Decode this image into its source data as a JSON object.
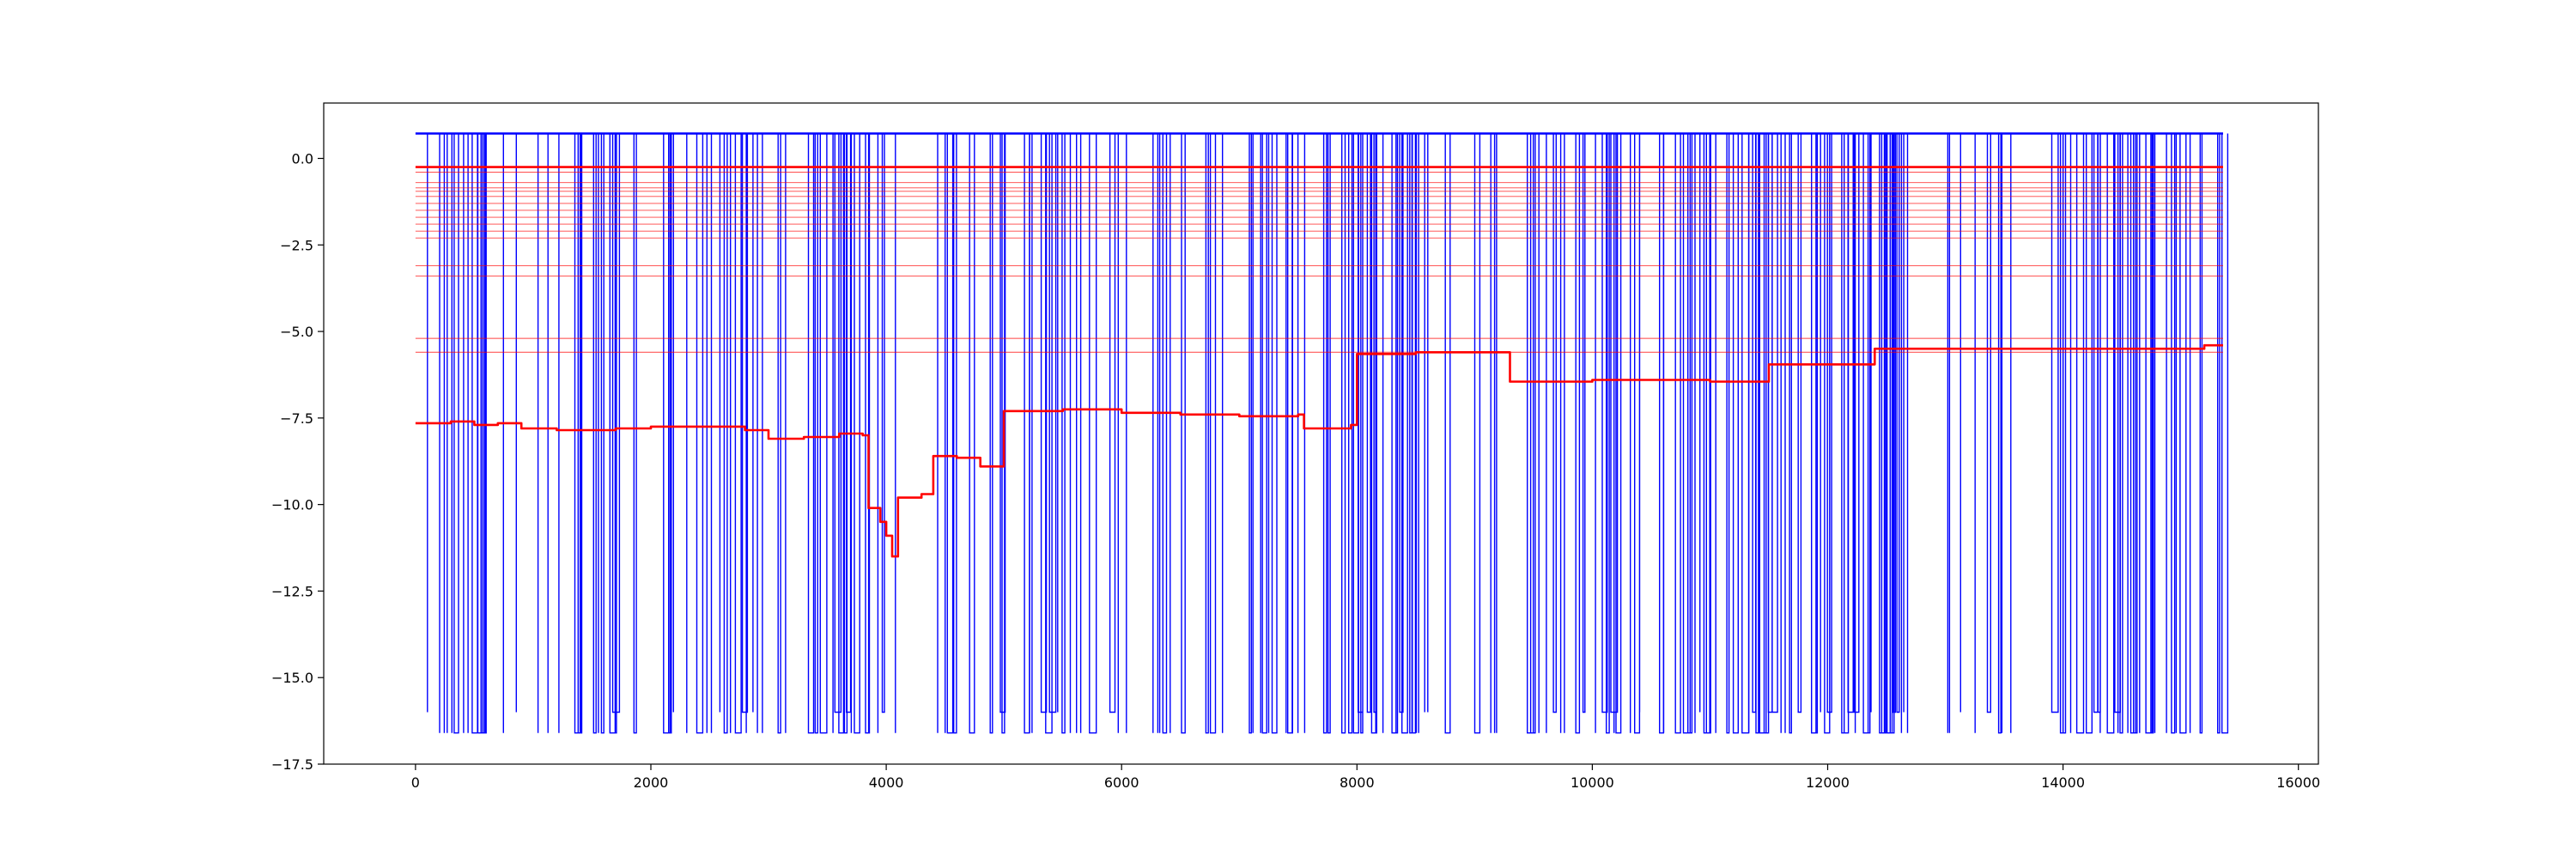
{
  "chart_data": {
    "type": "line",
    "title": "",
    "xlabel": "",
    "ylabel": "",
    "xlim": [
      -780,
      16170
    ],
    "ylim": [
      -17.5,
      1.6
    ],
    "x_ticks": [
      0,
      2000,
      4000,
      6000,
      8000,
      10000,
      12000,
      14000,
      16000
    ],
    "x_tick_labels": [
      "0",
      "2000",
      "4000",
      "6000",
      "8000",
      "10000",
      "12000",
      "14000",
      "16000"
    ],
    "y_ticks": [
      0.0,
      -2.5,
      -5.0,
      -7.5,
      -10.0,
      -12.5,
      -15.0,
      -17.5
    ],
    "y_tick_labels": [
      "0.0",
      "−2.5",
      "−5.0",
      "−7.5",
      "−10.0",
      "−12.5",
      "−15.0",
      "−17.5"
    ],
    "grid": false,
    "legend": "none",
    "x_range": [
      0,
      15360
    ],
    "series": [
      {
        "color": "#0000ff",
        "top_value": 0.72,
        "bottom_value": -16.6,
        "near_bottom_value": -16.0,
        "description_kind": "dense vertical spikes between top_value and bottom_value"
      },
      {
        "color": "#ff0000",
        "upper_band_levels": [
          -0.25,
          -0.4,
          -0.7,
          -0.85,
          -0.95,
          -1.1,
          -1.3,
          -1.5,
          -1.7,
          -1.9,
          -2.1,
          -2.3,
          -3.1,
          -3.4,
          -5.2,
          -5.6
        ],
        "step_x": [
          0,
          300,
          500,
          700,
          900,
          1200,
          1500,
          1700,
          2000,
          2400,
          2800,
          3000,
          3300,
          3600,
          3800,
          3850,
          3950,
          4000,
          4050,
          4100,
          4300,
          4400,
          4600,
          4800,
          4900,
          5000,
          5500,
          6000,
          6500,
          7000,
          7500,
          7550,
          7950,
          8000,
          8500,
          9000,
          9250,
          9300,
          10000,
          10500,
          11000,
          11500,
          12000,
          12400,
          12500,
          13000,
          14000,
          15000,
          15200,
          15360
        ],
        "step_y": [
          -7.65,
          -7.6,
          -7.7,
          -7.65,
          -7.8,
          -7.85,
          -7.85,
          -7.8,
          -7.75,
          -7.75,
          -7.85,
          -8.1,
          -8.05,
          -7.95,
          -8.0,
          -10.1,
          -10.5,
          -10.9,
          -11.5,
          -9.8,
          -9.7,
          -8.6,
          -8.65,
          -8.9,
          -8.9,
          -7.3,
          -7.25,
          -7.35,
          -7.4,
          -7.45,
          -7.4,
          -7.8,
          -7.7,
          -5.65,
          -5.6,
          -5.6,
          -5.6,
          -6.45,
          -6.4,
          -6.4,
          -6.45,
          -5.95,
          -5.95,
          -5.5,
          -5.5,
          -5.5,
          -5.5,
          -5.5,
          -5.4,
          -5.4
        ]
      }
    ]
  }
}
